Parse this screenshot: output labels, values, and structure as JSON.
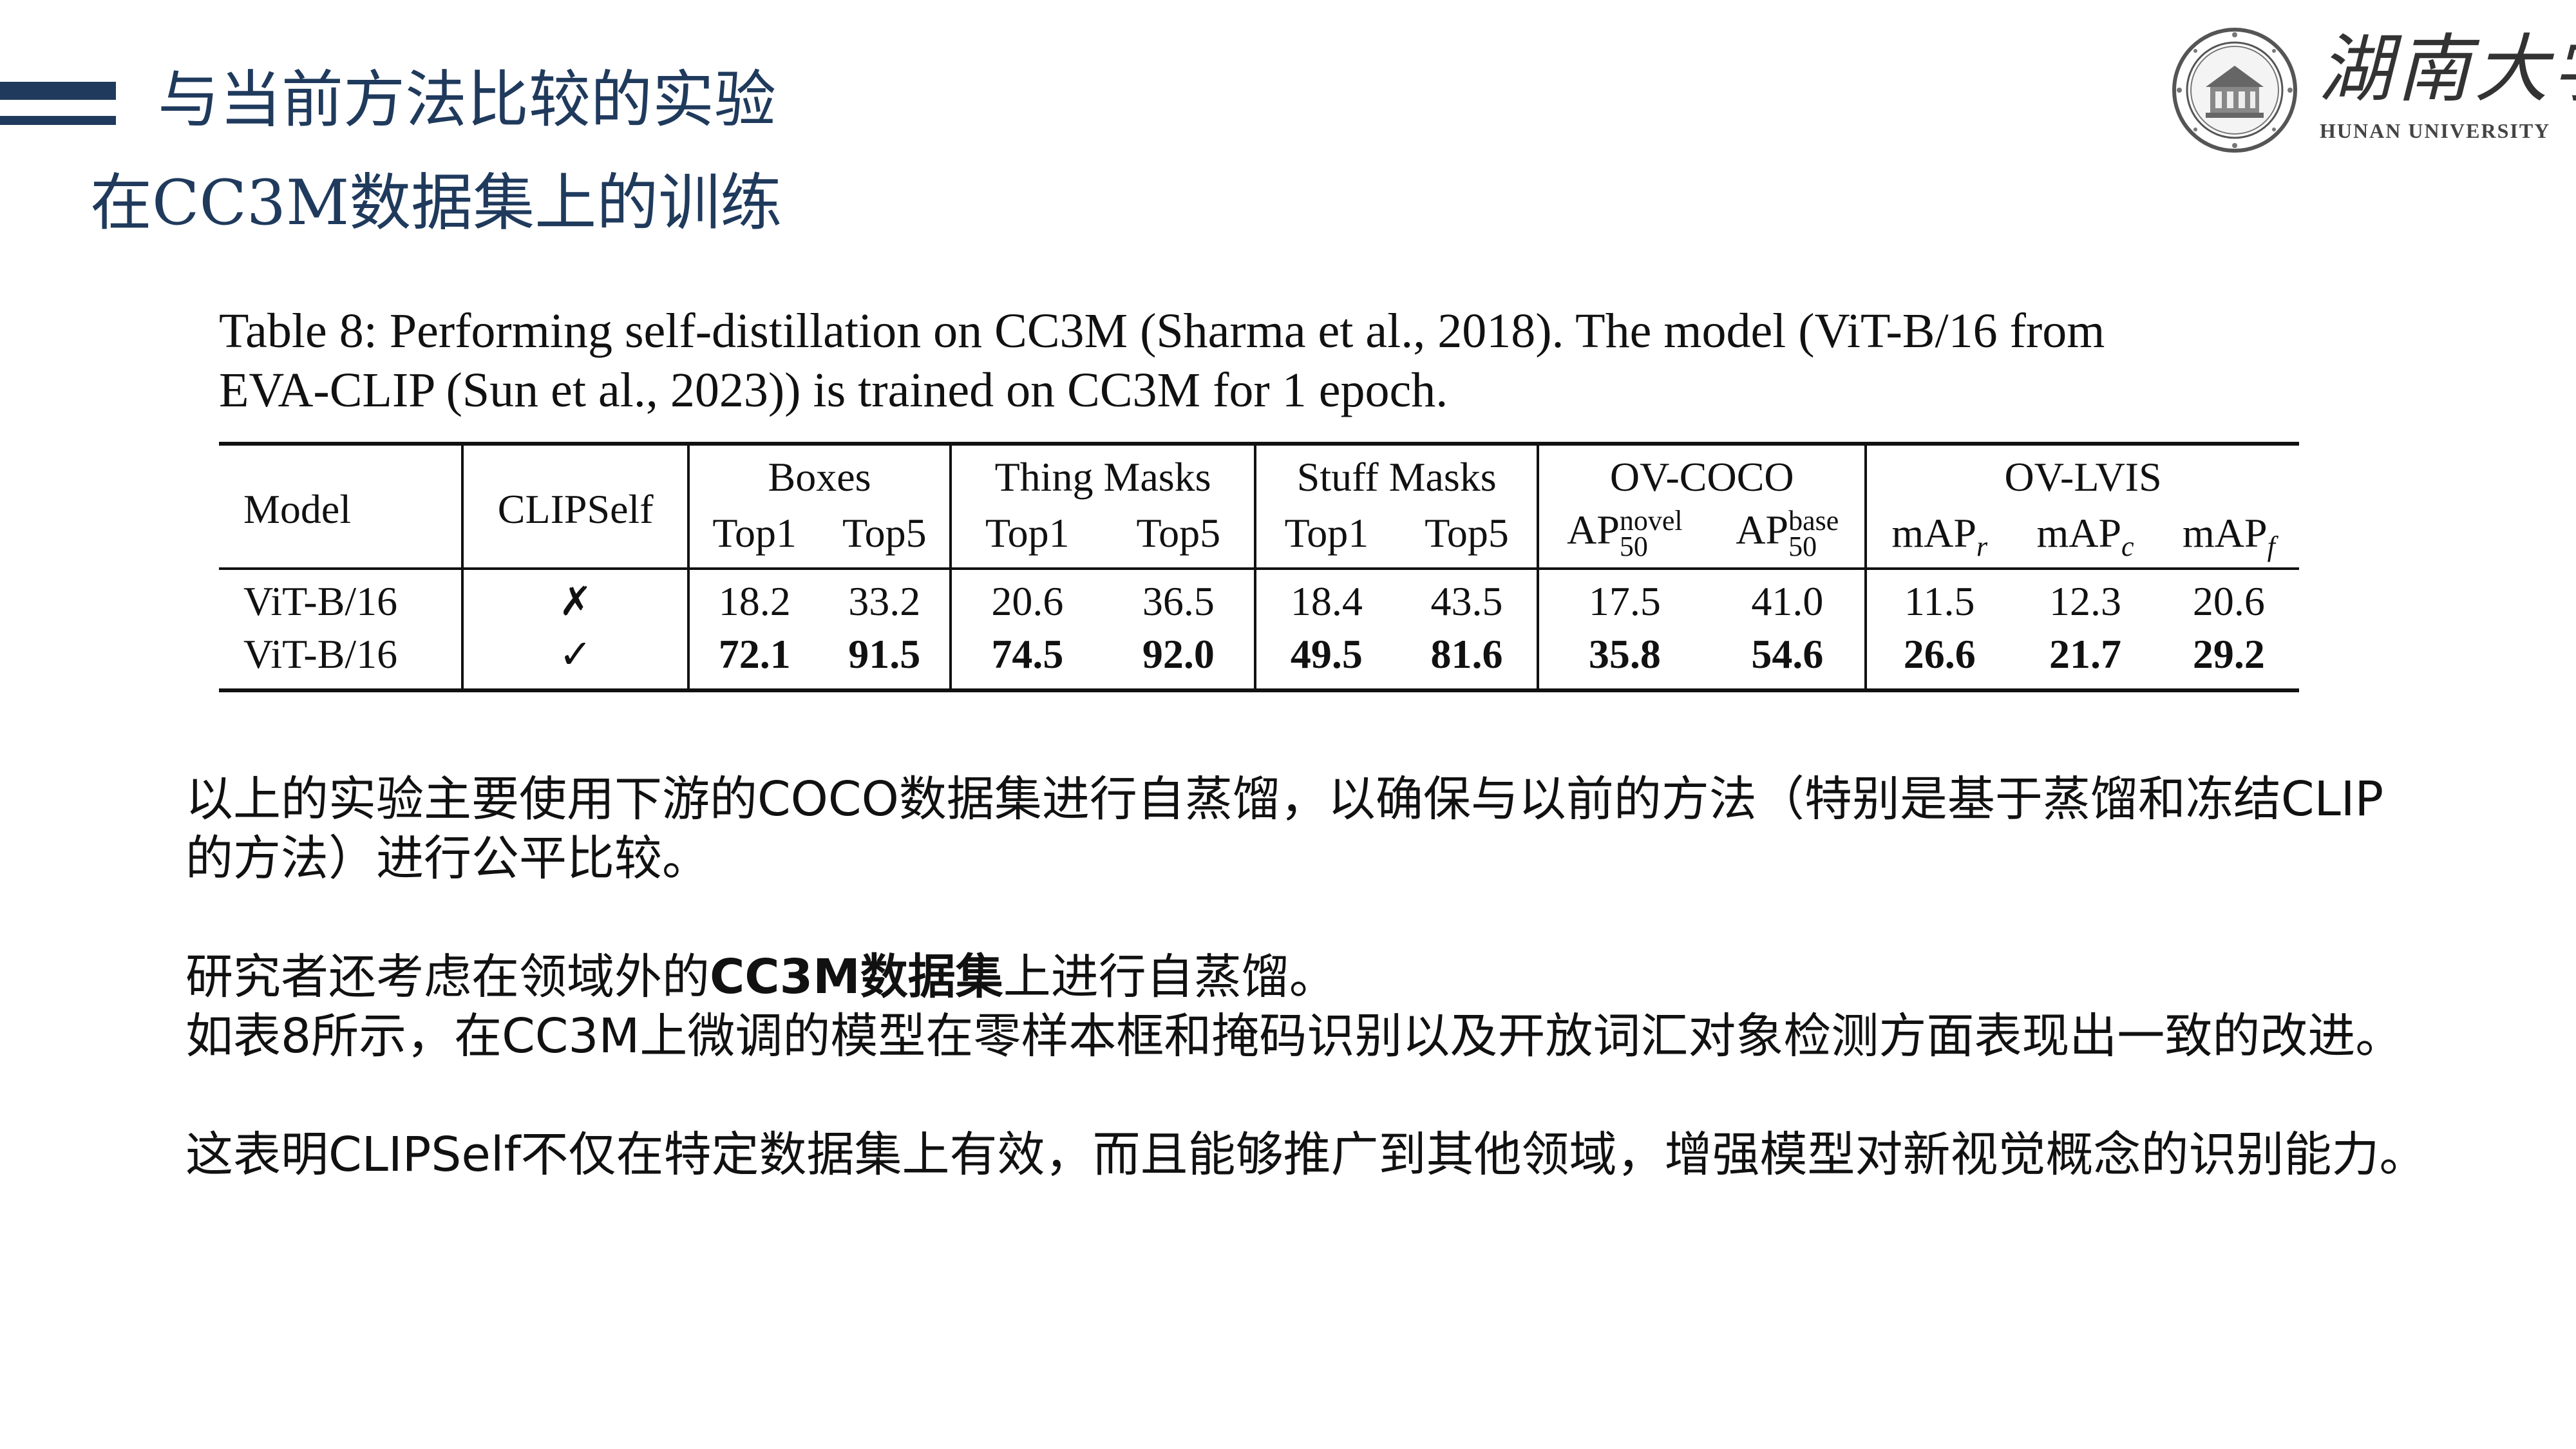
{
  "header": {
    "title": "与当前方法比较的实验",
    "subtitle": "在CC3M数据集上的训练"
  },
  "logo": {
    "chinese": "湖南大学",
    "english": "HUNAN UNIVERSITY"
  },
  "table": {
    "caption_line1": "Table 8: Performing self-distillation on CC3M (Sharma et al., 2018). The model (ViT-B/16 from",
    "caption_line2": "EVA-CLIP (Sun et al., 2023)) is trained on CC3M for 1 epoch.",
    "col_model": "Model",
    "col_clipself": "CLIPSelf",
    "groups": {
      "boxes": "Boxes",
      "thing_masks": "Thing Masks",
      "stuff_masks": "Stuff Masks",
      "ov_coco": "OV-COCO",
      "ov_lvis": "OV-LVIS"
    },
    "sub": {
      "top1": "Top1",
      "top5": "Top5",
      "ap": "AP",
      "novel": "novel",
      "base": "base",
      "fifty": "50",
      "map": "mAP",
      "r": "r",
      "c": "c",
      "f": "f"
    },
    "rows": [
      {
        "model": "ViT-B/16",
        "clipself": "✗",
        "values": [
          "18.2",
          "33.2",
          "20.6",
          "36.5",
          "18.4",
          "43.5",
          "17.5",
          "41.0",
          "11.5",
          "12.3",
          "20.6"
        ]
      },
      {
        "model": "ViT-B/16",
        "clipself": "✓",
        "values": [
          "72.1",
          "91.5",
          "74.5",
          "92.0",
          "49.5",
          "81.6",
          "35.8",
          "54.6",
          "26.6",
          "21.7",
          "29.2"
        ]
      }
    ]
  },
  "body": {
    "p1_line1": "以上的实验主要使用下游的COCO数据集进行自蒸馏，以确保与以前的方法（特别是基于蒸馏和冻结CLIP",
    "p1_line2": "的方法）进行公平比较。",
    "p2_pre": "研究者还考虑在领域外的",
    "p2_bold": "CC3M数据集",
    "p2_post": "上进行自蒸馏。",
    "p3": "如表8所示，在CC3M上微调的模型在零样本框和掩码识别以及开放词汇对象检测方面表现出一致的改进。",
    "p4": "这表明CLIPSelf不仅在特定数据集上有效，而且能够推广到其他领域，增强模型对新视觉概念的识别能力。"
  }
}
